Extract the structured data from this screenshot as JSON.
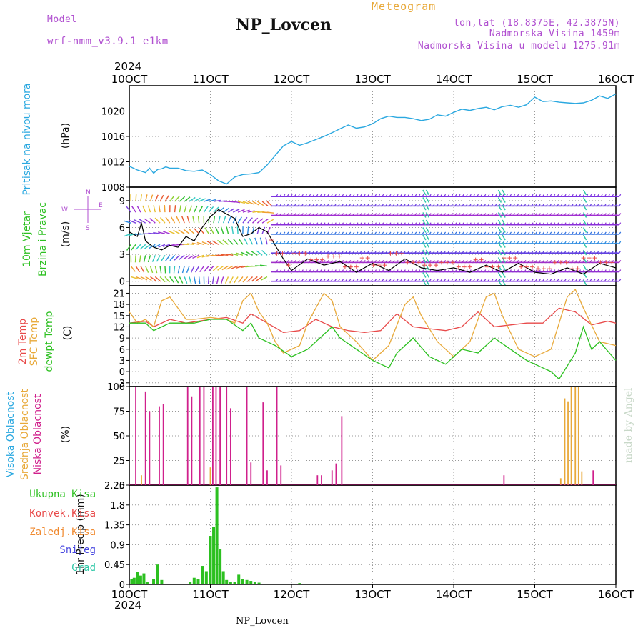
{
  "header": {
    "model_label": "Model",
    "model_value": "wrf-nmm_v3.9.1 e1km",
    "title": "NP_Lovcen",
    "meteogram_label": "Meteogram",
    "coords": "lon,lat (18.8375E, 42.3875N)",
    "altitude": "Nadmorska Visina 1459m",
    "model_altitude": "Nadmorska Visina u modelu 1275.91m",
    "year_top": "2024",
    "year_bottom": "2024",
    "footer_title": "NP_Lovcen",
    "watermark": "made by Angel"
  },
  "colors": {
    "pressure": "#2aa8e0",
    "wind_label": "#2cc020",
    "temp2m": "#e84a4a",
    "sfc": "#e8a93a",
    "dew": "#2cc020",
    "high_cloud": "#2aa8e0",
    "mid_cloud": "#e8a93a",
    "low_cloud": "#d0208c",
    "precip_total": "#2cc020",
    "precip_conv": "#e84a4a",
    "precip_frz": "#f08a30",
    "precip_snow": "#4848e0",
    "precip_hail": "#30c8a8"
  },
  "chart_data": [
    {
      "type": "line",
      "panel": "pressure",
      "ylabel_1": "Pritisak na nivou mora",
      "ylabel_2": "(hPa)",
      "ylim": [
        1008,
        1024
      ],
      "yticks": [
        1008,
        1012,
        1016,
        1020
      ],
      "x_ticks": [
        "10OCT",
        "11OCT",
        "12OCT",
        "13OCT",
        "14OCT",
        "15OCT",
        "16OCT"
      ],
      "x_start_label": "10OCT",
      "grid": true,
      "series": [
        {
          "values_x_days": [
            0,
            0.1,
            0.2,
            0.25,
            0.3,
            0.35,
            0.4,
            0.45,
            0.5,
            0.6,
            0.7,
            0.8,
            0.9,
            1.0,
            1.1,
            1.2,
            1.3,
            1.4,
            1.5,
            1.6,
            1.7,
            1.8,
            1.9,
            2.0,
            2.1,
            2.2,
            2.3,
            2.4,
            2.5,
            2.6,
            2.7,
            2.8,
            2.9,
            3.0,
            3.1,
            3.2,
            3.3,
            3.4,
            3.5,
            3.6,
            3.7,
            3.8,
            3.9,
            4.0,
            4.1,
            4.2,
            4.3,
            4.4,
            4.5,
            4.6,
            4.7,
            4.8,
            4.9,
            5.0,
            5.1,
            5.2,
            5.3,
            5.4,
            5.5,
            5.6,
            5.7,
            5.8,
            5.9,
            6.0
          ],
          "values": [
            1011.3,
            1010.7,
            1010.3,
            1011.0,
            1010.2,
            1010.8,
            1010.9,
            1011.2,
            1011.0,
            1011.0,
            1010.6,
            1010.5,
            1010.7,
            1010.0,
            1009.0,
            1008.5,
            1009.6,
            1010.0,
            1010.1,
            1010.3,
            1011.5,
            1013.0,
            1014.5,
            1015.2,
            1014.6,
            1015.0,
            1015.5,
            1016.0,
            1016.6,
            1017.2,
            1017.8,
            1017.3,
            1017.5,
            1018.0,
            1018.8,
            1019.2,
            1019.0,
            1019.0,
            1018.8,
            1018.5,
            1018.7,
            1019.4,
            1019.2,
            1019.8,
            1020.3,
            1020.1,
            1020.4,
            1020.6,
            1020.2,
            1020.7,
            1020.9,
            1020.6,
            1021.0,
            1022.2,
            1021.5,
            1021.6,
            1021.4,
            1021.3,
            1021.2,
            1021.3,
            1021.7,
            1022.4,
            1022.0,
            1022.7
          ]
        }
      ]
    },
    {
      "type": "line",
      "panel": "wind",
      "ylabel_1": "10m Vjetar",
      "ylabel_2": "Brzina i Pravac",
      "ylabel_3": "(m/s)",
      "compass": [
        "N",
        "S",
        "E",
        "W"
      ],
      "ylim": [
        -0.5,
        10.5
      ],
      "yticks": [
        0,
        3,
        6,
        9
      ],
      "grid": true,
      "series": [
        {
          "name": "speed",
          "values_x_days": [
            0,
            0.1,
            0.15,
            0.2,
            0.3,
            0.4,
            0.5,
            0.6,
            0.7,
            0.8,
            0.9,
            1.0,
            1.1,
            1.2,
            1.3,
            1.4,
            1.5,
            1.6,
            1.7,
            1.8,
            1.9,
            2.0,
            2.2,
            2.4,
            2.6,
            2.8,
            3.0,
            3.2,
            3.4,
            3.6,
            3.8,
            4.0,
            4.2,
            4.4,
            4.6,
            4.8,
            5.0,
            5.2,
            5.4,
            5.6,
            5.8,
            6.0
          ],
          "values": [
            5.5,
            5.0,
            6.5,
            4.5,
            3.8,
            3.5,
            4.0,
            3.8,
            5.0,
            4.5,
            6.0,
            7.2,
            8.0,
            7.5,
            7.0,
            5.0,
            5.3,
            6.0,
            5.5,
            4.0,
            2.5,
            1.2,
            2.5,
            1.8,
            2.2,
            1.0,
            2.0,
            1.2,
            2.5,
            1.5,
            1.2,
            1.5,
            1.0,
            1.8,
            1.0,
            2.0,
            1.0,
            0.8,
            1.5,
            0.8,
            2.0,
            1.5
          ]
        }
      ]
    },
    {
      "type": "line",
      "panel": "temperature",
      "ylabel_1": "2m Temp",
      "ylabel_2": "SFC Temp",
      "ylabel_3": "dewpt Temp",
      "ylabel_4": "(C)",
      "ylim": [
        -4,
        23
      ],
      "yticks": [
        -3,
        0,
        3,
        6,
        9,
        12,
        15,
        18,
        21
      ],
      "grid": true,
      "series": [
        {
          "name": "2m Temp",
          "values_x_days": [
            0,
            0.2,
            0.3,
            0.5,
            0.7,
            1.0,
            1.2,
            1.4,
            1.5,
            1.7,
            1.9,
            2.1,
            2.3,
            2.5,
            2.7,
            2.9,
            3.1,
            3.3,
            3.5,
            3.7,
            3.9,
            4.1,
            4.3,
            4.5,
            4.7,
            4.9,
            5.1,
            5.3,
            5.5,
            5.7,
            5.9,
            6.0
          ],
          "values": [
            13,
            13.5,
            12,
            14,
            13,
            14,
            14.5,
            13,
            15.5,
            13,
            10.5,
            11,
            14,
            12,
            11,
            10.5,
            11,
            15.5,
            12,
            11.5,
            11,
            12,
            16,
            12,
            12.5,
            13,
            13,
            17,
            16,
            12.5,
            13.5,
            13
          ]
        },
        {
          "name": "SFC Temp",
          "values_x_days": [
            0,
            0.1,
            0.2,
            0.3,
            0.4,
            0.5,
            0.6,
            0.7,
            0.8,
            1.0,
            1.2,
            1.3,
            1.4,
            1.5,
            1.6,
            1.7,
            1.8,
            1.9,
            2.1,
            2.2,
            2.4,
            2.5,
            2.6,
            2.8,
            3.0,
            3.2,
            3.4,
            3.5,
            3.6,
            3.8,
            4.0,
            4.2,
            4.4,
            4.5,
            4.6,
            4.8,
            5.0,
            5.2,
            5.4,
            5.5,
            5.6,
            5.8,
            6.0
          ],
          "values": [
            16,
            13,
            14,
            12,
            19,
            20,
            17,
            14,
            14,
            14.5,
            14,
            13,
            19,
            21,
            16,
            13,
            8,
            5,
            7,
            13,
            21,
            19,
            12,
            8,
            3,
            7,
            18,
            20,
            15,
            8,
            4,
            8,
            20,
            21,
            15,
            6,
            4,
            6,
            20,
            22,
            17,
            8,
            7
          ]
        },
        {
          "name": "dewpt Temp",
          "values_x_days": [
            0,
            0.2,
            0.3,
            0.5,
            0.8,
            1.0,
            1.2,
            1.4,
            1.5,
            1.6,
            1.8,
            2.0,
            2.2,
            2.3,
            2.5,
            2.6,
            2.8,
            3.0,
            3.2,
            3.3,
            3.5,
            3.7,
            3.9,
            4.1,
            4.3,
            4.5,
            4.7,
            4.9,
            5.0,
            5.2,
            5.3,
            5.5,
            5.6,
            5.7,
            5.8,
            6.0
          ],
          "values": [
            13,
            13,
            11,
            13,
            13,
            14,
            14,
            11,
            13,
            9,
            7,
            4,
            6,
            8,
            12,
            9,
            6,
            3,
            1,
            5,
            9,
            4,
            2,
            6,
            5,
            9,
            6,
            3,
            2,
            0,
            -2,
            5,
            12,
            6,
            8,
            3
          ]
        }
      ]
    },
    {
      "type": "bar",
      "panel": "clouds",
      "ylabel_1": "Visoka Oblacnost",
      "ylabel_2": "Srednja Oblacnost",
      "ylabel_3": "Niska Oblacnost",
      "ylabel_4": "(%)",
      "ylim": [
        0,
        100
      ],
      "yticks": [
        0,
        25,
        50,
        75,
        100
      ],
      "grid": true,
      "series": [
        {
          "name": "Niska Oblacnost",
          "x_days": [
            0.08,
            0.2,
            0.25,
            0.37,
            0.42,
            0.72,
            0.77,
            0.87,
            0.92,
            1.03,
            1.07,
            1.12,
            1.2,
            1.25,
            1.45,
            1.5,
            1.65,
            1.7,
            1.82,
            1.87,
            2.32,
            2.37,
            2.5,
            2.55,
            2.62,
            4.62,
            5.72
          ],
          "values": [
            100,
            95,
            75,
            80,
            82,
            100,
            90,
            100,
            100,
            100,
            100,
            100,
            100,
            78,
            100,
            23,
            84,
            15,
            100,
            20,
            10,
            10,
            15,
            22,
            70,
            10,
            15
          ]
        },
        {
          "name": "Srednja Oblacnost",
          "x_days": [
            0.15,
            1.0,
            5.32,
            5.37,
            5.41,
            5.45,
            5.5,
            5.54,
            5.58
          ],
          "values": [
            10,
            18,
            7,
            88,
            85,
            100,
            100,
            100,
            14
          ]
        },
        {
          "name": "Visoka Oblacnost",
          "x_days": [],
          "values": []
        }
      ]
    },
    {
      "type": "bar",
      "panel": "precipitation",
      "ylabel": "1hr Precip (mm)",
      "ylim": [
        0,
        2.25
      ],
      "yticks": [
        0,
        0.45,
        0.9,
        1.35,
        1.8,
        2.25
      ],
      "legend": [
        "Ukupna Kisa",
        "Konvek.Kisa",
        "Zaledj.Kisa",
        "Snijeg",
        "Grad"
      ],
      "x_ticks": [
        "10OCT",
        "11OCT",
        "12OCT",
        "13OCT",
        "14OCT",
        "15OCT",
        "16OCT"
      ],
      "grid": true,
      "series": [
        {
          "name": "Ukupna Kisa",
          "x_days": [
            0.03,
            0.06,
            0.1,
            0.14,
            0.18,
            0.22,
            0.3,
            0.35,
            0.4,
            0.75,
            0.8,
            0.85,
            0.9,
            0.95,
            1.0,
            1.04,
            1.08,
            1.12,
            1.16,
            1.2,
            1.25,
            1.3,
            1.35,
            1.4,
            1.45,
            1.5,
            1.55,
            1.6,
            2.1
          ],
          "values": [
            0.12,
            0.15,
            0.28,
            0.2,
            0.25,
            0.05,
            0.12,
            0.45,
            0.1,
            0.05,
            0.15,
            0.12,
            0.42,
            0.3,
            1.1,
            1.3,
            2.2,
            0.8,
            0.3,
            0.1,
            0.05,
            0.05,
            0.22,
            0.12,
            0.1,
            0.08,
            0.05,
            0.04,
            0.03
          ]
        }
      ]
    }
  ]
}
